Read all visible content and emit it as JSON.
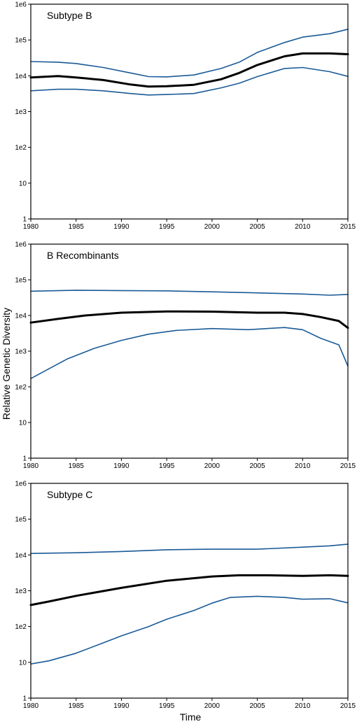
{
  "ylabel": "Relative Genetic Diversity",
  "xlabel": "Time",
  "colors": {
    "median": "#000000",
    "interval": "#1a5a96"
  },
  "chart_data": [
    {
      "type": "line",
      "title": "Subtype B",
      "scale": "log",
      "xlim": [
        1980,
        2015
      ],
      "ylim": [
        1,
        1000000
      ],
      "x_ticks": [
        1980,
        1985,
        1990,
        1995,
        2000,
        2005,
        2010,
        2015
      ],
      "y_ticks": [
        {
          "value": 1,
          "label": "1"
        },
        {
          "value": 10,
          "label": "10"
        },
        {
          "value": 100,
          "label": "1e2"
        },
        {
          "value": 1000,
          "label": "1e3"
        },
        {
          "value": 10000,
          "label": "1e4"
        },
        {
          "value": 100000,
          "label": "1e5"
        },
        {
          "value": 1000000,
          "label": "1e6"
        }
      ],
      "series": [
        {
          "role": "upper",
          "x": [
            1980,
            1983,
            1985,
            1988,
            1991,
            1993,
            1995,
            1998,
            2001,
            2003,
            2005,
            2008,
            2010,
            2013,
            2015
          ],
          "y": [
            25000,
            24000,
            22000,
            17000,
            12000,
            9500,
            9300,
            10500,
            16000,
            24000,
            45000,
            85000,
            120000,
            150000,
            200000
          ]
        },
        {
          "role": "median",
          "x": [
            1980,
            1983,
            1985,
            1988,
            1991,
            1993,
            1995,
            1998,
            2001,
            2003,
            2005,
            2008,
            2010,
            2013,
            2015
          ],
          "y": [
            9000,
            9800,
            9000,
            7600,
            5700,
            5000,
            5100,
            5600,
            8000,
            12000,
            20000,
            35000,
            42000,
            42000,
            40000
          ]
        },
        {
          "role": "lower",
          "x": [
            1980,
            1983,
            1985,
            1988,
            1991,
            1993,
            1995,
            1998,
            2001,
            2003,
            2005,
            2008,
            2010,
            2013,
            2015
          ],
          "y": [
            3800,
            4200,
            4200,
            3800,
            3200,
            2900,
            3000,
            3200,
            4600,
            6200,
            9500,
            16000,
            17000,
            13000,
            9600
          ]
        }
      ]
    },
    {
      "type": "line",
      "title": "B Recombinants",
      "scale": "log",
      "xlim": [
        1980,
        2015
      ],
      "ylim": [
        1,
        1000000
      ],
      "x_ticks": [
        1980,
        1985,
        1990,
        1995,
        2000,
        2005,
        2010,
        2015
      ],
      "y_ticks": [
        {
          "value": 1,
          "label": "1"
        },
        {
          "value": 10,
          "label": "10"
        },
        {
          "value": 100,
          "label": "1e2"
        },
        {
          "value": 1000,
          "label": "1e3"
        },
        {
          "value": 10000,
          "label": "1e4"
        },
        {
          "value": 100000,
          "label": "1e5"
        },
        {
          "value": 1000000,
          "label": "1e6"
        }
      ],
      "series": [
        {
          "role": "upper",
          "x": [
            1980,
            1985,
            1990,
            1995,
            2000,
            2005,
            2010,
            2013,
            2015
          ],
          "y": [
            48000,
            51000,
            50000,
            49000,
            46000,
            43000,
            40000,
            37000,
            39000
          ]
        },
        {
          "role": "median",
          "x": [
            1980,
            1983,
            1986,
            1990,
            1995,
            2000,
            2005,
            2008,
            2010,
            2012,
            2014,
            2015
          ],
          "y": [
            6300,
            8000,
            10000,
            12000,
            13000,
            12800,
            12000,
            12000,
            11000,
            9000,
            7000,
            4500
          ]
        },
        {
          "role": "lower",
          "x": [
            1980,
            1982,
            1984,
            1987,
            1990,
            1993,
            1996,
            2000,
            2004,
            2008,
            2010,
            2012,
            2014,
            2015
          ],
          "y": [
            170,
            320,
            600,
            1200,
            2000,
            3000,
            3800,
            4300,
            4000,
            4600,
            4000,
            2300,
            1500,
            380
          ]
        }
      ]
    },
    {
      "type": "line",
      "title": "Subtype C",
      "scale": "log",
      "xlim": [
        1980,
        2015
      ],
      "ylim": [
        1,
        1000000
      ],
      "x_ticks": [
        1980,
        1985,
        1990,
        1995,
        2000,
        2005,
        2010,
        2015
      ],
      "y_ticks": [
        {
          "value": 1,
          "label": "1"
        },
        {
          "value": 10,
          "label": "10"
        },
        {
          "value": 100,
          "label": "1e2"
        },
        {
          "value": 1000,
          "label": "1e3"
        },
        {
          "value": 10000,
          "label": "1e4"
        },
        {
          "value": 100000,
          "label": "1e5"
        },
        {
          "value": 1000000,
          "label": "1e6"
        }
      ],
      "series": [
        {
          "role": "upper",
          "x": [
            1980,
            1985,
            1990,
            1995,
            2000,
            2005,
            2010,
            2013,
            2015
          ],
          "y": [
            11000,
            11500,
            12500,
            14000,
            14500,
            14500,
            16500,
            18000,
            20000
          ]
        },
        {
          "role": "median",
          "x": [
            1980,
            1982,
            1985,
            1990,
            1995,
            2000,
            2003,
            2006,
            2010,
            2013,
            2015
          ],
          "y": [
            400,
            500,
            720,
            1200,
            1900,
            2500,
            2700,
            2700,
            2600,
            2700,
            2600
          ]
        },
        {
          "role": "lower",
          "x": [
            1980,
            1982,
            1985,
            1988,
            1990,
            1993,
            1995,
            1998,
            2000,
            2002,
            2005,
            2008,
            2010,
            2013,
            2015
          ],
          "y": [
            9,
            11,
            18,
            35,
            55,
            100,
            160,
            280,
            450,
            650,
            700,
            650,
            580,
            600,
            460
          ]
        }
      ]
    }
  ]
}
